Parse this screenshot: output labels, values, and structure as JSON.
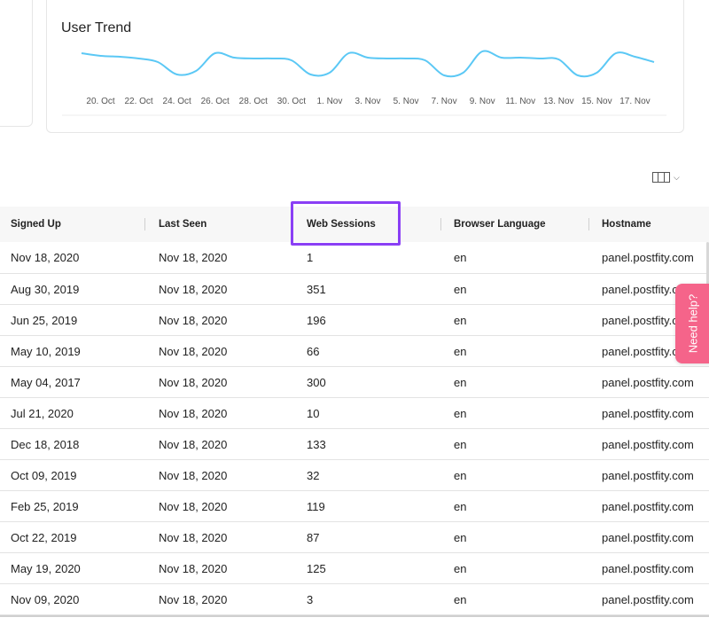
{
  "chart_data": {
    "type": "line",
    "title": "User Trend",
    "x_ticks": [
      "20. Oct",
      "22. Oct",
      "24. Oct",
      "26. Oct",
      "28. Oct",
      "30. Oct",
      "1. Nov",
      "3. Nov",
      "5. Nov",
      "7. Nov",
      "9. Nov",
      "11. Nov",
      "13. Nov",
      "15. Nov",
      "17. Nov"
    ],
    "series": [
      {
        "color": "#5bc8f5",
        "points": [
          [
            "19. Oct",
            2.6
          ],
          [
            "20. Oct",
            2.3
          ],
          [
            "21. Oct",
            2.2
          ],
          [
            "22. Oct",
            2.0
          ],
          [
            "23. Oct",
            1.6
          ],
          [
            "24. Oct",
            0.2
          ],
          [
            "25. Oct",
            0.6
          ],
          [
            "26. Oct",
            2.6
          ],
          [
            "27. Oct",
            2.1
          ],
          [
            "28. Oct",
            2.0
          ],
          [
            "29. Oct",
            2.0
          ],
          [
            "30. Oct",
            1.8
          ],
          [
            "31. Oct",
            0.2
          ],
          [
            "1. Nov",
            0.4
          ],
          [
            "2. Nov",
            2.6
          ],
          [
            "3. Nov",
            2.1
          ],
          [
            "4. Nov",
            2.0
          ],
          [
            "5. Nov",
            2.0
          ],
          [
            "6. Nov",
            1.8
          ],
          [
            "7. Nov",
            0.1
          ],
          [
            "8. Nov",
            0.4
          ],
          [
            "9. Nov",
            2.8
          ],
          [
            "10. Nov",
            2.1
          ],
          [
            "11. Nov",
            2.1
          ],
          [
            "12. Nov",
            2.0
          ],
          [
            "13. Nov",
            1.9
          ],
          [
            "14. Nov",
            0.1
          ],
          [
            "15. Nov",
            0.4
          ],
          [
            "16. Nov",
            2.6
          ],
          [
            "17. Nov",
            2.2
          ],
          [
            "18. Nov",
            1.6
          ]
        ]
      }
    ]
  },
  "table": {
    "headers": [
      "Signed Up",
      "Last Seen",
      "Web Sessions",
      "Browser Language",
      "Hostname"
    ],
    "highlighted_column": "Web Sessions",
    "rows": [
      [
        "Nov 18, 2020",
        "Nov 18, 2020",
        "1",
        "en",
        "panel.postfity.com"
      ],
      [
        "Aug 30, 2019",
        "Nov 18, 2020",
        "351",
        "en",
        "panel.postfity.com"
      ],
      [
        "Jun 25, 2019",
        "Nov 18, 2020",
        "196",
        "en",
        "panel.postfity.com"
      ],
      [
        "May 10, 2019",
        "Nov 18, 2020",
        "66",
        "en",
        "panel.postfity.com"
      ],
      [
        "May 04, 2017",
        "Nov 18, 2020",
        "300",
        "en",
        "panel.postfity.com"
      ],
      [
        "Jul 21, 2020",
        "Nov 18, 2020",
        "10",
        "en",
        "panel.postfity.com"
      ],
      [
        "Dec 18, 2018",
        "Nov 18, 2020",
        "133",
        "en",
        "panel.postfity.com"
      ],
      [
        "Oct 09, 2019",
        "Nov 18, 2020",
        "32",
        "en",
        "panel.postfity.com"
      ],
      [
        "Feb 25, 2019",
        "Nov 18, 2020",
        "119",
        "en",
        "panel.postfity.com"
      ],
      [
        "Oct 22, 2019",
        "Nov 18, 2020",
        "87",
        "en",
        "panel.postfity.com"
      ],
      [
        "May 19, 2020",
        "Nov 18, 2020",
        "125",
        "en",
        "panel.postfity.com"
      ],
      [
        "Nov 09, 2020",
        "Nov 18, 2020",
        "3",
        "en",
        "panel.postfity.com"
      ]
    ]
  },
  "toolbar": {
    "column_chooser_icon": "columns-icon"
  },
  "help": {
    "label": "Need help?",
    "color": "#f5648a"
  },
  "accent": {
    "highlight_color": "#8a3ff5"
  }
}
